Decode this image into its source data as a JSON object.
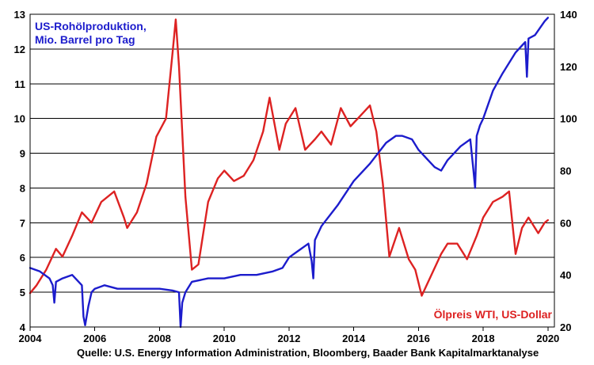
{
  "chart_data": {
    "type": "line",
    "title": "",
    "source": "Quelle: U.S. Energy Information Administration, Bloomberg, Baader Bank Kapitalmarktanalyse",
    "grid": true,
    "x_ticks": [
      "2004",
      "2006",
      "2008",
      "2010",
      "2012",
      "2014",
      "2016",
      "2018",
      "2020"
    ],
    "x_range": [
      2004,
      2020.2
    ],
    "left_axis": {
      "range": [
        4,
        13
      ],
      "ticks": [
        "4",
        "5",
        "6",
        "7",
        "8",
        "9",
        "10",
        "11",
        "12",
        "13"
      ]
    },
    "right_axis": {
      "range": [
        20,
        140
      ],
      "ticks": [
        "20",
        "40",
        "60",
        "80",
        "100",
        "120",
        "140"
      ]
    },
    "series": [
      {
        "name": "US-Rohölproduktion, Mio. Barrel pro Tag",
        "label_lines": [
          "US-Rohölproduktion,",
          "Mio. Barrel pro Tag"
        ],
        "axis": "left",
        "color": "#1c1ccc",
        "x": [
          2004.0,
          2004.3,
          2004.6,
          2004.7,
          2004.75,
          2004.8,
          2005.0,
          2005.3,
          2005.6,
          2005.65,
          2005.7,
          2005.8,
          2005.9,
          2006.0,
          2006.3,
          2006.7,
          2007.0,
          2007.5,
          2008.0,
          2008.4,
          2008.6,
          2008.65,
          2008.7,
          2008.8,
          2009.0,
          2009.5,
          2010.0,
          2010.5,
          2011.0,
          2011.5,
          2011.8,
          2012.0,
          2012.3,
          2012.6,
          2012.7,
          2012.75,
          2012.8,
          2013.0,
          2013.5,
          2014.0,
          2014.5,
          2015.0,
          2015.3,
          2015.5,
          2015.8,
          2016.0,
          2016.3,
          2016.5,
          2016.7,
          2016.9,
          2017.0,
          2017.3,
          2017.6,
          2017.7,
          2017.75,
          2017.8,
          2017.9,
          2018.0,
          2018.3,
          2018.6,
          2019.0,
          2019.2,
          2019.3,
          2019.35,
          2019.4,
          2019.6,
          2019.9,
          2020.0
        ],
        "values": [
          5.7,
          5.6,
          5.4,
          5.2,
          4.7,
          5.3,
          5.4,
          5.5,
          5.2,
          4.3,
          4.05,
          4.6,
          5.0,
          5.1,
          5.2,
          5.1,
          5.1,
          5.1,
          5.1,
          5.05,
          5.0,
          4.0,
          4.7,
          5.0,
          5.3,
          5.4,
          5.4,
          5.5,
          5.5,
          5.6,
          5.7,
          6.0,
          6.2,
          6.4,
          5.9,
          5.4,
          6.5,
          6.9,
          7.5,
          8.2,
          8.7,
          9.3,
          9.5,
          9.5,
          9.4,
          9.1,
          8.8,
          8.6,
          8.5,
          8.8,
          8.9,
          9.2,
          9.4,
          8.5,
          8.0,
          9.5,
          9.8,
          10.0,
          10.8,
          11.3,
          11.9,
          12.1,
          12.2,
          11.2,
          12.3,
          12.4,
          12.8,
          12.9
        ]
      },
      {
        "name": "Ölpreis WTI, US-Dollar",
        "label_lines": [
          "Ölpreis WTI, US-Dollar"
        ],
        "axis": "right",
        "color": "#dd2222",
        "x": [
          2004.0,
          2004.2,
          2004.5,
          2004.8,
          2005.0,
          2005.3,
          2005.6,
          2005.9,
          2006.2,
          2006.6,
          2006.9,
          2007.0,
          2007.3,
          2007.6,
          2007.9,
          2008.2,
          2008.4,
          2008.5,
          2008.6,
          2008.8,
          2009.0,
          2009.2,
          2009.5,
          2009.8,
          2010.0,
          2010.3,
          2010.6,
          2010.9,
          2011.2,
          2011.4,
          2011.7,
          2011.9,
          2012.2,
          2012.5,
          2012.8,
          2013.0,
          2013.3,
          2013.6,
          2013.9,
          2014.2,
          2014.5,
          2014.7,
          2014.9,
          2015.1,
          2015.4,
          2015.7,
          2015.9,
          2016.1,
          2016.4,
          2016.7,
          2016.9,
          2017.2,
          2017.5,
          2017.8,
          2018.0,
          2018.3,
          2018.6,
          2018.8,
          2019.0,
          2019.2,
          2019.4,
          2019.7,
          2019.9,
          2020.0
        ],
        "values": [
          33,
          36,
          42,
          50,
          47,
          55,
          64,
          60,
          68,
          72,
          62,
          58,
          64,
          75,
          93,
          100,
          125,
          138,
          120,
          70,
          42,
          44,
          68,
          77,
          80,
          76,
          78,
          84,
          95,
          108,
          88,
          98,
          104,
          88,
          92,
          95,
          90,
          104,
          97,
          101,
          105,
          95,
          75,
          47,
          58,
          46,
          42,
          32,
          40,
          48,
          52,
          52,
          46,
          55,
          62,
          68,
          70,
          72,
          48,
          58,
          62,
          56,
          60,
          61
        ]
      }
    ]
  }
}
